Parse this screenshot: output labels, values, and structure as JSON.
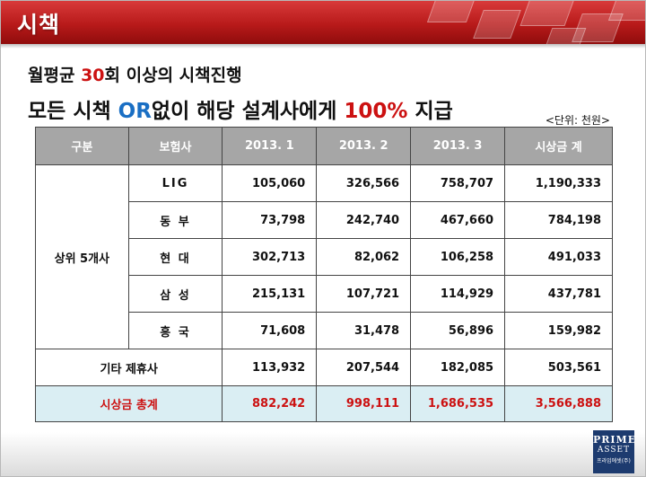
{
  "header": {
    "title": "시책"
  },
  "subtitle1": {
    "prefix": "월평균 ",
    "highlight": "30",
    "suffix": "회 이상의 시책진행"
  },
  "subtitle2": {
    "p1": "모든 시책 ",
    "or": "OR",
    "p2": "없이 해당 설계사에게 ",
    "pct": "100%",
    "p3": " 지급"
  },
  "unit_note": "<단위: 천원>",
  "table": {
    "headers": [
      "구분",
      "보험사",
      "2013. 1",
      "2013. 2",
      "2013. 3",
      "시상금 계"
    ],
    "group_label": "상위 5개사",
    "rows": [
      {
        "insurer": "LIG",
        "v1": "105,060",
        "v2": "326,566",
        "v3": "758,707",
        "total": "1,190,333"
      },
      {
        "insurer": "동 부",
        "v1": "73,798",
        "v2": "242,740",
        "v3": "467,660",
        "total": "784,198"
      },
      {
        "insurer": "현 대",
        "v1": "302,713",
        "v2": "82,062",
        "v3": "106,258",
        "total": "491,033"
      },
      {
        "insurer": "삼 성",
        "v1": "215,131",
        "v2": "107,721",
        "v3": "114,929",
        "total": "437,781"
      },
      {
        "insurer": "흥 국",
        "v1": "71,608",
        "v2": "31,478",
        "v3": "56,896",
        "total": "159,982"
      }
    ],
    "other": {
      "label": "기타 제휴사",
      "v1": "113,932",
      "v2": "207,544",
      "v3": "182,085",
      "total": "503,561"
    },
    "grand_total": {
      "label": "시상금 총계",
      "v1": "882,242",
      "v2": "998,111",
      "v3": "1,686,535",
      "total": "3,566,888"
    }
  },
  "logo": {
    "line1": "PRIME",
    "line2": "ASSET",
    "line3": "프라임에셋(주)"
  },
  "colors": {
    "header_red": "#b81a1a",
    "highlight_red": "#cc1111",
    "highlight_blue": "#1a6fc4",
    "table_header": "#a6a6a6",
    "total_row": "#daeef3"
  }
}
